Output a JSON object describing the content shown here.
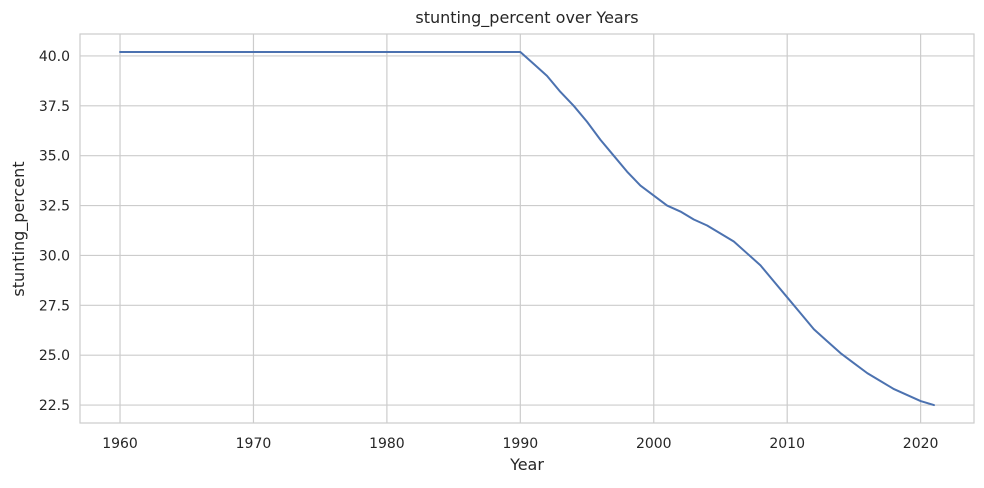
{
  "chart_data": {
    "type": "line",
    "title": "stunting_percent over Years",
    "xlabel": "Year",
    "ylabel": "stunting_percent",
    "xlim": [
      1957,
      2024
    ],
    "ylim": [
      21.6,
      41.1
    ],
    "xticks": [
      1960,
      1970,
      1980,
      1990,
      2000,
      2010,
      2020
    ],
    "yticks": [
      22.5,
      25.0,
      27.5,
      30.0,
      32.5,
      35.0,
      37.5,
      40.0
    ],
    "ytick_labels": [
      "22.5",
      "25.0",
      "27.5",
      "30.0",
      "32.5",
      "35.0",
      "37.5",
      "40.0"
    ],
    "grid": true,
    "legend": "none",
    "series_color": "#4c72b0",
    "series": [
      {
        "x": [
          1960,
          1965,
          1970,
          1975,
          1980,
          1985,
          1990,
          1991,
          1992,
          1993,
          1994,
          1995,
          1996,
          1997,
          1998,
          1999,
          2000,
          2001,
          2002,
          2003,
          2004,
          2005,
          2006,
          2007,
          2008,
          2009,
          2010,
          2011,
          2012,
          2013,
          2014,
          2015,
          2016,
          2017,
          2018,
          2019,
          2020,
          2021
        ],
        "y": [
          40.2,
          40.2,
          40.2,
          40.2,
          40.2,
          40.2,
          40.2,
          39.6,
          39.0,
          38.2,
          37.5,
          36.7,
          35.8,
          35.0,
          34.2,
          33.5,
          33.0,
          32.5,
          32.2,
          31.8,
          31.5,
          31.1,
          30.7,
          30.1,
          29.5,
          28.7,
          27.9,
          27.1,
          26.3,
          25.7,
          25.1,
          24.6,
          24.1,
          23.7,
          23.3,
          23.0,
          22.7,
          22.5
        ]
      }
    ]
  }
}
